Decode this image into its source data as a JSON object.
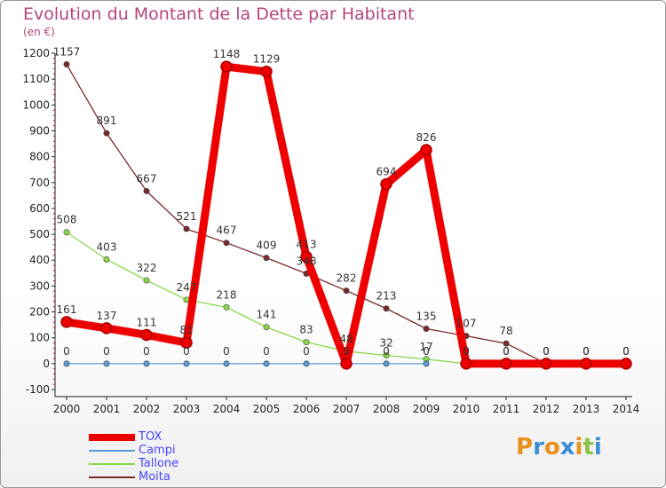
{
  "title": "Evolution du Montant de la Dette par Habitant",
  "subtitle": "(en €)",
  "logo": "Proxiti",
  "chart_data": {
    "type": "line",
    "title": "Evolution du Montant de la Dette par Habitant",
    "subtitle": "(en €)",
    "x": [
      2000,
      2001,
      2002,
      2003,
      2004,
      2005,
      2006,
      2007,
      2008,
      2009,
      2010,
      2011,
      2012,
      2013,
      2014
    ],
    "ylim": [
      -100,
      1200
    ],
    "yticks": [
      -100,
      0,
      100,
      200,
      300,
      400,
      500,
      600,
      700,
      800,
      900,
      1000,
      1100,
      1200
    ],
    "grid": false,
    "legend_position": "bottom-left",
    "series": [
      {
        "name": "TOX",
        "color": "#ee0000",
        "values": [
          161,
          137,
          111,
          81,
          1148,
          1129,
          413,
          0,
          694,
          826,
          0,
          0,
          0,
          0,
          0
        ],
        "labels": [
          "161",
          "137",
          "111",
          "81",
          "1148",
          "1129",
          "413",
          "0",
          "694",
          "826",
          "0",
          "0",
          "0",
          "0",
          "0"
        ]
      },
      {
        "name": "Campi",
        "color": "#5b9bd5",
        "values": [
          0,
          0,
          0,
          0,
          0,
          0,
          0,
          0,
          0,
          0,
          null,
          null,
          null,
          null,
          null
        ],
        "labels": [
          "0",
          "0",
          "0",
          "0",
          "0",
          "0",
          "0",
          "0",
          "0",
          "0",
          "",
          "",
          "",
          "",
          ""
        ]
      },
      {
        "name": "Tallone",
        "color": "#88d84a",
        "values": [
          508,
          403,
          322,
          247,
          218,
          141,
          83,
          48,
          32,
          17,
          0,
          0,
          null,
          null,
          null
        ],
        "labels": [
          "508",
          "403",
          "322",
          "247",
          "218",
          "141",
          "83",
          "48",
          "32",
          "17",
          "0",
          "0",
          "",
          "",
          ""
        ]
      },
      {
        "name": "Moita",
        "color": "#7a2a2a",
        "values": [
          1157,
          891,
          667,
          521,
          467,
          409,
          348,
          282,
          213,
          135,
          107,
          78,
          0,
          0,
          0
        ],
        "labels": [
          "1157",
          "891",
          "667",
          "521",
          "467",
          "409",
          "348",
          "282",
          "213",
          "135",
          "107",
          "78",
          "0",
          "0",
          "0"
        ]
      }
    ]
  }
}
